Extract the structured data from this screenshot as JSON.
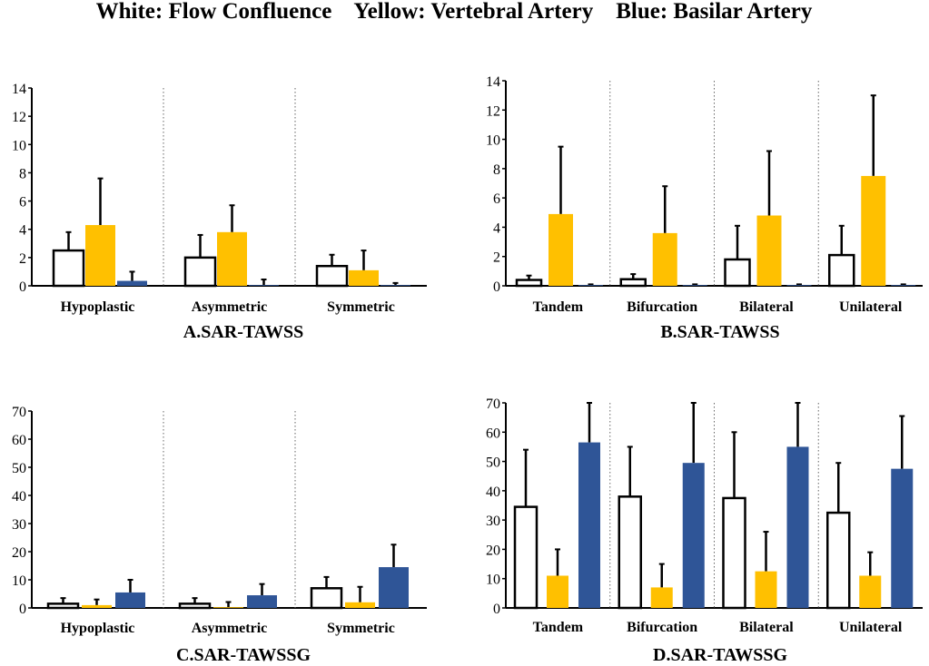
{
  "legend_title": "White: Flow Confluence    Yellow: Vertebral Artery    Blue: Basilar Artery",
  "series_colors": {
    "white": "#ffffff",
    "yellow": "#ffc000",
    "blue": "#2f5597"
  },
  "chart_data": [
    {
      "id": "A",
      "type": "bar",
      "title": "A.SAR-TAWSS",
      "categories": [
        "Hypoplastic",
        "Asymmetric",
        "Symmetric"
      ],
      "ylim": [
        0,
        14
      ],
      "yticks": [
        0,
        2,
        4,
        6,
        8,
        10,
        12,
        14
      ],
      "series": [
        {
          "name": "Flow Confluence",
          "color_key": "white",
          "values": [
            2.5,
            2.0,
            1.4
          ],
          "errors": [
            1.3,
            1.6,
            0.8
          ]
        },
        {
          "name": "Vertebral Artery",
          "color_key": "yellow",
          "values": [
            4.3,
            3.8,
            1.1
          ],
          "errors": [
            3.3,
            1.9,
            1.4
          ]
        },
        {
          "name": "Basilar Artery",
          "color_key": "blue",
          "values": [
            0.35,
            0.05,
            0.05
          ],
          "errors": [
            0.65,
            0.4,
            0.15
          ]
        }
      ]
    },
    {
      "id": "B",
      "type": "bar",
      "title": "B.SAR-TAWSS",
      "categories": [
        "Tandem",
        "Bifurcation",
        "Bilateral",
        "Unilateral"
      ],
      "ylim": [
        0,
        14
      ],
      "yticks": [
        0,
        2,
        4,
        6,
        8,
        10,
        12,
        14
      ],
      "series": [
        {
          "name": "Flow Confluence",
          "color_key": "white",
          "values": [
            0.4,
            0.45,
            1.8,
            2.1
          ],
          "errors": [
            0.3,
            0.35,
            2.3,
            2.0
          ]
        },
        {
          "name": "Vertebral Artery",
          "color_key": "yellow",
          "values": [
            4.9,
            3.6,
            4.8,
            7.5
          ],
          "errors": [
            4.6,
            3.2,
            4.4,
            5.5
          ]
        },
        {
          "name": "Basilar Artery",
          "color_key": "blue",
          "values": [
            0.05,
            0.05,
            0.05,
            0.05
          ],
          "errors": [
            0.05,
            0.05,
            0.05,
            0.05
          ]
        }
      ]
    },
    {
      "id": "C",
      "type": "bar",
      "title": "C.SAR-TAWSSG",
      "categories": [
        "Hypoplastic",
        "Asymmetric",
        "Symmetric"
      ],
      "ylim": [
        0,
        70
      ],
      "yticks": [
        0,
        10,
        20,
        30,
        40,
        50,
        60,
        70
      ],
      "series": [
        {
          "name": "Flow Confluence",
          "color_key": "white",
          "values": [
            1.5,
            1.5,
            7.0
          ],
          "errors": [
            2.0,
            2.0,
            4.0
          ]
        },
        {
          "name": "Vertebral Artery",
          "color_key": "yellow",
          "values": [
            1.0,
            0.1,
            2.0
          ],
          "errors": [
            2.0,
            2.0,
            5.5
          ]
        },
        {
          "name": "Basilar Artery",
          "color_key": "blue",
          "values": [
            5.5,
            4.5,
            14.5
          ],
          "errors": [
            4.5,
            4.0,
            8.0
          ]
        }
      ]
    },
    {
      "id": "D",
      "type": "bar",
      "title": "D.SAR-TAWSSG",
      "categories": [
        "Tandem",
        "Bifurcation",
        "Bilateral",
        "Unilateral"
      ],
      "ylim": [
        0,
        70
      ],
      "yticks": [
        0,
        10,
        20,
        30,
        40,
        50,
        60,
        70
      ],
      "series": [
        {
          "name": "Flow Confluence",
          "color_key": "white",
          "values": [
            34.5,
            38.0,
            37.5,
            32.5
          ],
          "errors": [
            19.5,
            17.0,
            22.5,
            17.0
          ]
        },
        {
          "name": "Vertebral Artery",
          "color_key": "yellow",
          "values": [
            11.0,
            7.0,
            12.5,
            11.0
          ],
          "errors": [
            9.0,
            8.0,
            13.5,
            8.0
          ]
        },
        {
          "name": "Basilar Artery",
          "color_key": "blue",
          "values": [
            56.5,
            49.5,
            55.0,
            47.5
          ],
          "errors": [
            13.5,
            20.5,
            15.0,
            18.0
          ]
        }
      ]
    }
  ]
}
